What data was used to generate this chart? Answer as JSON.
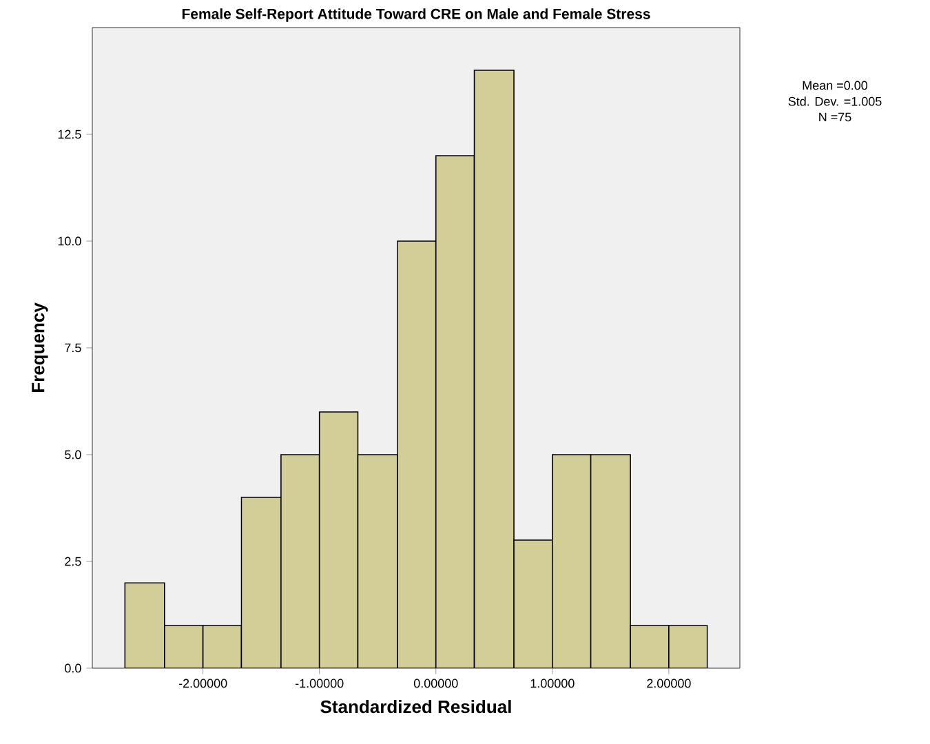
{
  "chart_data": {
    "type": "histogram",
    "title": "Female Self-Report Attitude Toward CRE on Male and Female Stress",
    "xlabel": "Standardized Residual",
    "ylabel": "Frequency",
    "bins": [
      -2.67,
      -2.33,
      -2.0,
      -1.67,
      -1.33,
      -1.0,
      -0.67,
      -0.33,
      0.0,
      0.33,
      0.67,
      1.0,
      1.33,
      1.67,
      2.0,
      2.33
    ],
    "values": [
      2,
      1,
      1,
      4,
      5,
      6,
      5,
      10,
      12,
      14,
      3,
      5,
      5,
      1,
      1
    ],
    "color": "#d3ce97",
    "xlim": [
      -2.95,
      2.61
    ],
    "ylim": [
      0,
      15
    ],
    "xticks": [
      {
        "value": -2,
        "label": "-2.00000"
      },
      {
        "value": -1,
        "label": "-1.00000"
      },
      {
        "value": 0,
        "label": "0.00000"
      },
      {
        "value": 1,
        "label": "1.00000"
      },
      {
        "value": 2,
        "label": "2.00000"
      }
    ],
    "yticks": [
      {
        "value": 0,
        "label": "0.0"
      },
      {
        "value": 2.5,
        "label": "2.5"
      },
      {
        "value": 5,
        "label": "5.0"
      },
      {
        "value": 7.5,
        "label": "7.5"
      },
      {
        "value": 10,
        "label": "10.0"
      },
      {
        "value": 12.5,
        "label": "12.5"
      }
    ],
    "grid": false,
    "annotations": [
      "Mean =0.00",
      "Std. Dev. =1.005",
      "N =75"
    ]
  }
}
